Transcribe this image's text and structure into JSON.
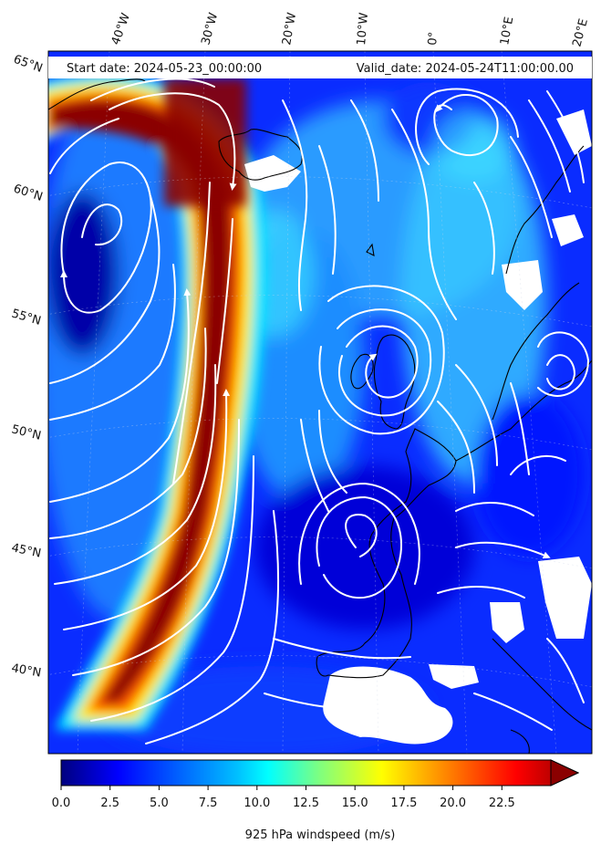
{
  "header": {
    "start_date": "Start date: 2024-05-23_00:00:00",
    "valid_date": "Valid_date: 2024-05-24T11:00:00.00"
  },
  "lon_labels": [
    "40°W",
    "30°W",
    "20°W",
    "10°W",
    "0°",
    "10°E",
    "20°E"
  ],
  "lat_labels": [
    "65°N",
    "60°N",
    "55°N",
    "50°N",
    "45°N",
    "40°N"
  ],
  "colorbar": {
    "title": "925 hPa windspeed (m/s)",
    "ticks": [
      "0.0",
      "2.5",
      "5.0",
      "7.5",
      "10.0",
      "12.5",
      "15.0",
      "17.5",
      "20.0",
      "22.5"
    ],
    "range": [
      0,
      25
    ],
    "extend": "max",
    "colormap": "jet",
    "colors": [
      "#00007f",
      "#0000ff",
      "#007fff",
      "#00ffff",
      "#7fff7f",
      "#ffff00",
      "#ff7f00",
      "#ff0000",
      "#7f0000"
    ]
  },
  "map": {
    "coastline_color": "#000000",
    "streamline_color": "#ffffff",
    "missing_color": "#ffffff"
  }
}
